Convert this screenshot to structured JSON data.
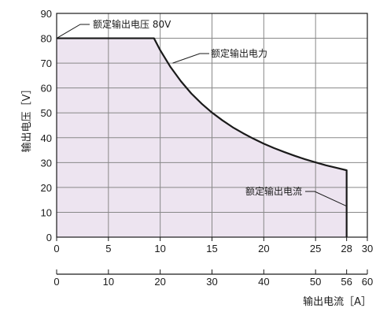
{
  "chart_data": {
    "type": "area",
    "ylabel": "输出电压［V］",
    "xlabel": "输出电流［A］",
    "ylim": [
      0,
      90
    ],
    "y_ticks": [
      0,
      10,
      20,
      30,
      40,
      50,
      60,
      70,
      80,
      90
    ],
    "x_axis_primary": {
      "range": [
        0,
        30
      ],
      "ticks": [
        "0",
        "5",
        "10",
        "15",
        "20",
        "25",
        "28",
        "30"
      ],
      "tick_values": [
        0,
        5,
        10,
        15,
        20,
        25,
        28,
        30
      ]
    },
    "x_axis_secondary": {
      "range": [
        0,
        60
      ],
      "ticks": [
        "0",
        "10",
        "20",
        "30",
        "40",
        "50",
        "56",
        "60"
      ],
      "tick_values": [
        0,
        10,
        20,
        30,
        40,
        50,
        56,
        60
      ]
    },
    "grid": true,
    "fill_color": "#ede4f0",
    "line_color": "#1a1a1a",
    "series": [
      {
        "x": [
          0,
          9.4,
          10,
          11,
          12,
          13,
          14,
          15,
          16,
          17,
          18,
          19,
          20,
          21,
          22,
          23,
          24,
          25,
          26,
          27,
          28,
          28
        ],
        "y": [
          80,
          80,
          75.2,
          68.4,
          62.7,
          57.8,
          53.7,
          50.1,
          47.0,
          44.2,
          41.8,
          39.6,
          37.6,
          35.8,
          34.2,
          32.7,
          31.3,
          30.1,
          28.9,
          27.9,
          26.9,
          0
        ]
      }
    ],
    "annotations": {
      "voltage": {
        "text": "额定输出电压 80V",
        "x": 0,
        "y": 80
      },
      "power": {
        "text": "额定输出电力",
        "x": 11.2,
        "y": 70
      },
      "current": {
        "text": "额定输出电流",
        "x": 28,
        "y": 15
      }
    }
  }
}
